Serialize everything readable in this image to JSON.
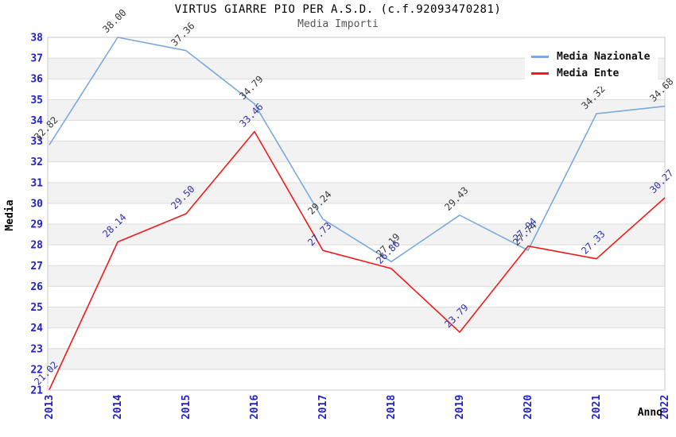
{
  "title": "VIRTUS GIARRE PIO PER A.S.D. (c.f.92093470281)",
  "subtitle": "Media Importi",
  "chart_data": {
    "type": "line",
    "x": [
      "2013",
      "2014",
      "2015",
      "2016",
      "2017",
      "2018",
      "2019",
      "2020",
      "2021",
      "2022"
    ],
    "xlabel": "Anno",
    "ylabel": "Media",
    "ylim": [
      21,
      38
    ],
    "ytick_step": 1,
    "grid": true,
    "legend_position": "top-right",
    "series": [
      {
        "name": "Media Nazionale",
        "color": "#7aaadd",
        "label_color": "#3a3a3a",
        "values": [
          32.82,
          38.0,
          37.36,
          34.79,
          29.24,
          27.19,
          29.43,
          27.74,
          34.32,
          34.68
        ]
      },
      {
        "name": "Media Ente",
        "color": "#ee1c1c",
        "label_color": "#3333aa",
        "values": [
          21.02,
          28.14,
          29.5,
          33.46,
          27.73,
          26.86,
          23.79,
          27.94,
          27.33,
          30.27
        ]
      }
    ]
  },
  "colors": {
    "axis_label": "#2222cc",
    "grid_line": "#dcdcdc",
    "band_fill": "#f2f2f2",
    "plot_border": "#c9c9c9",
    "title": "#000000",
    "subtitle": "#555555",
    "legend_text": "#101010",
    "background": "#ffffff"
  }
}
